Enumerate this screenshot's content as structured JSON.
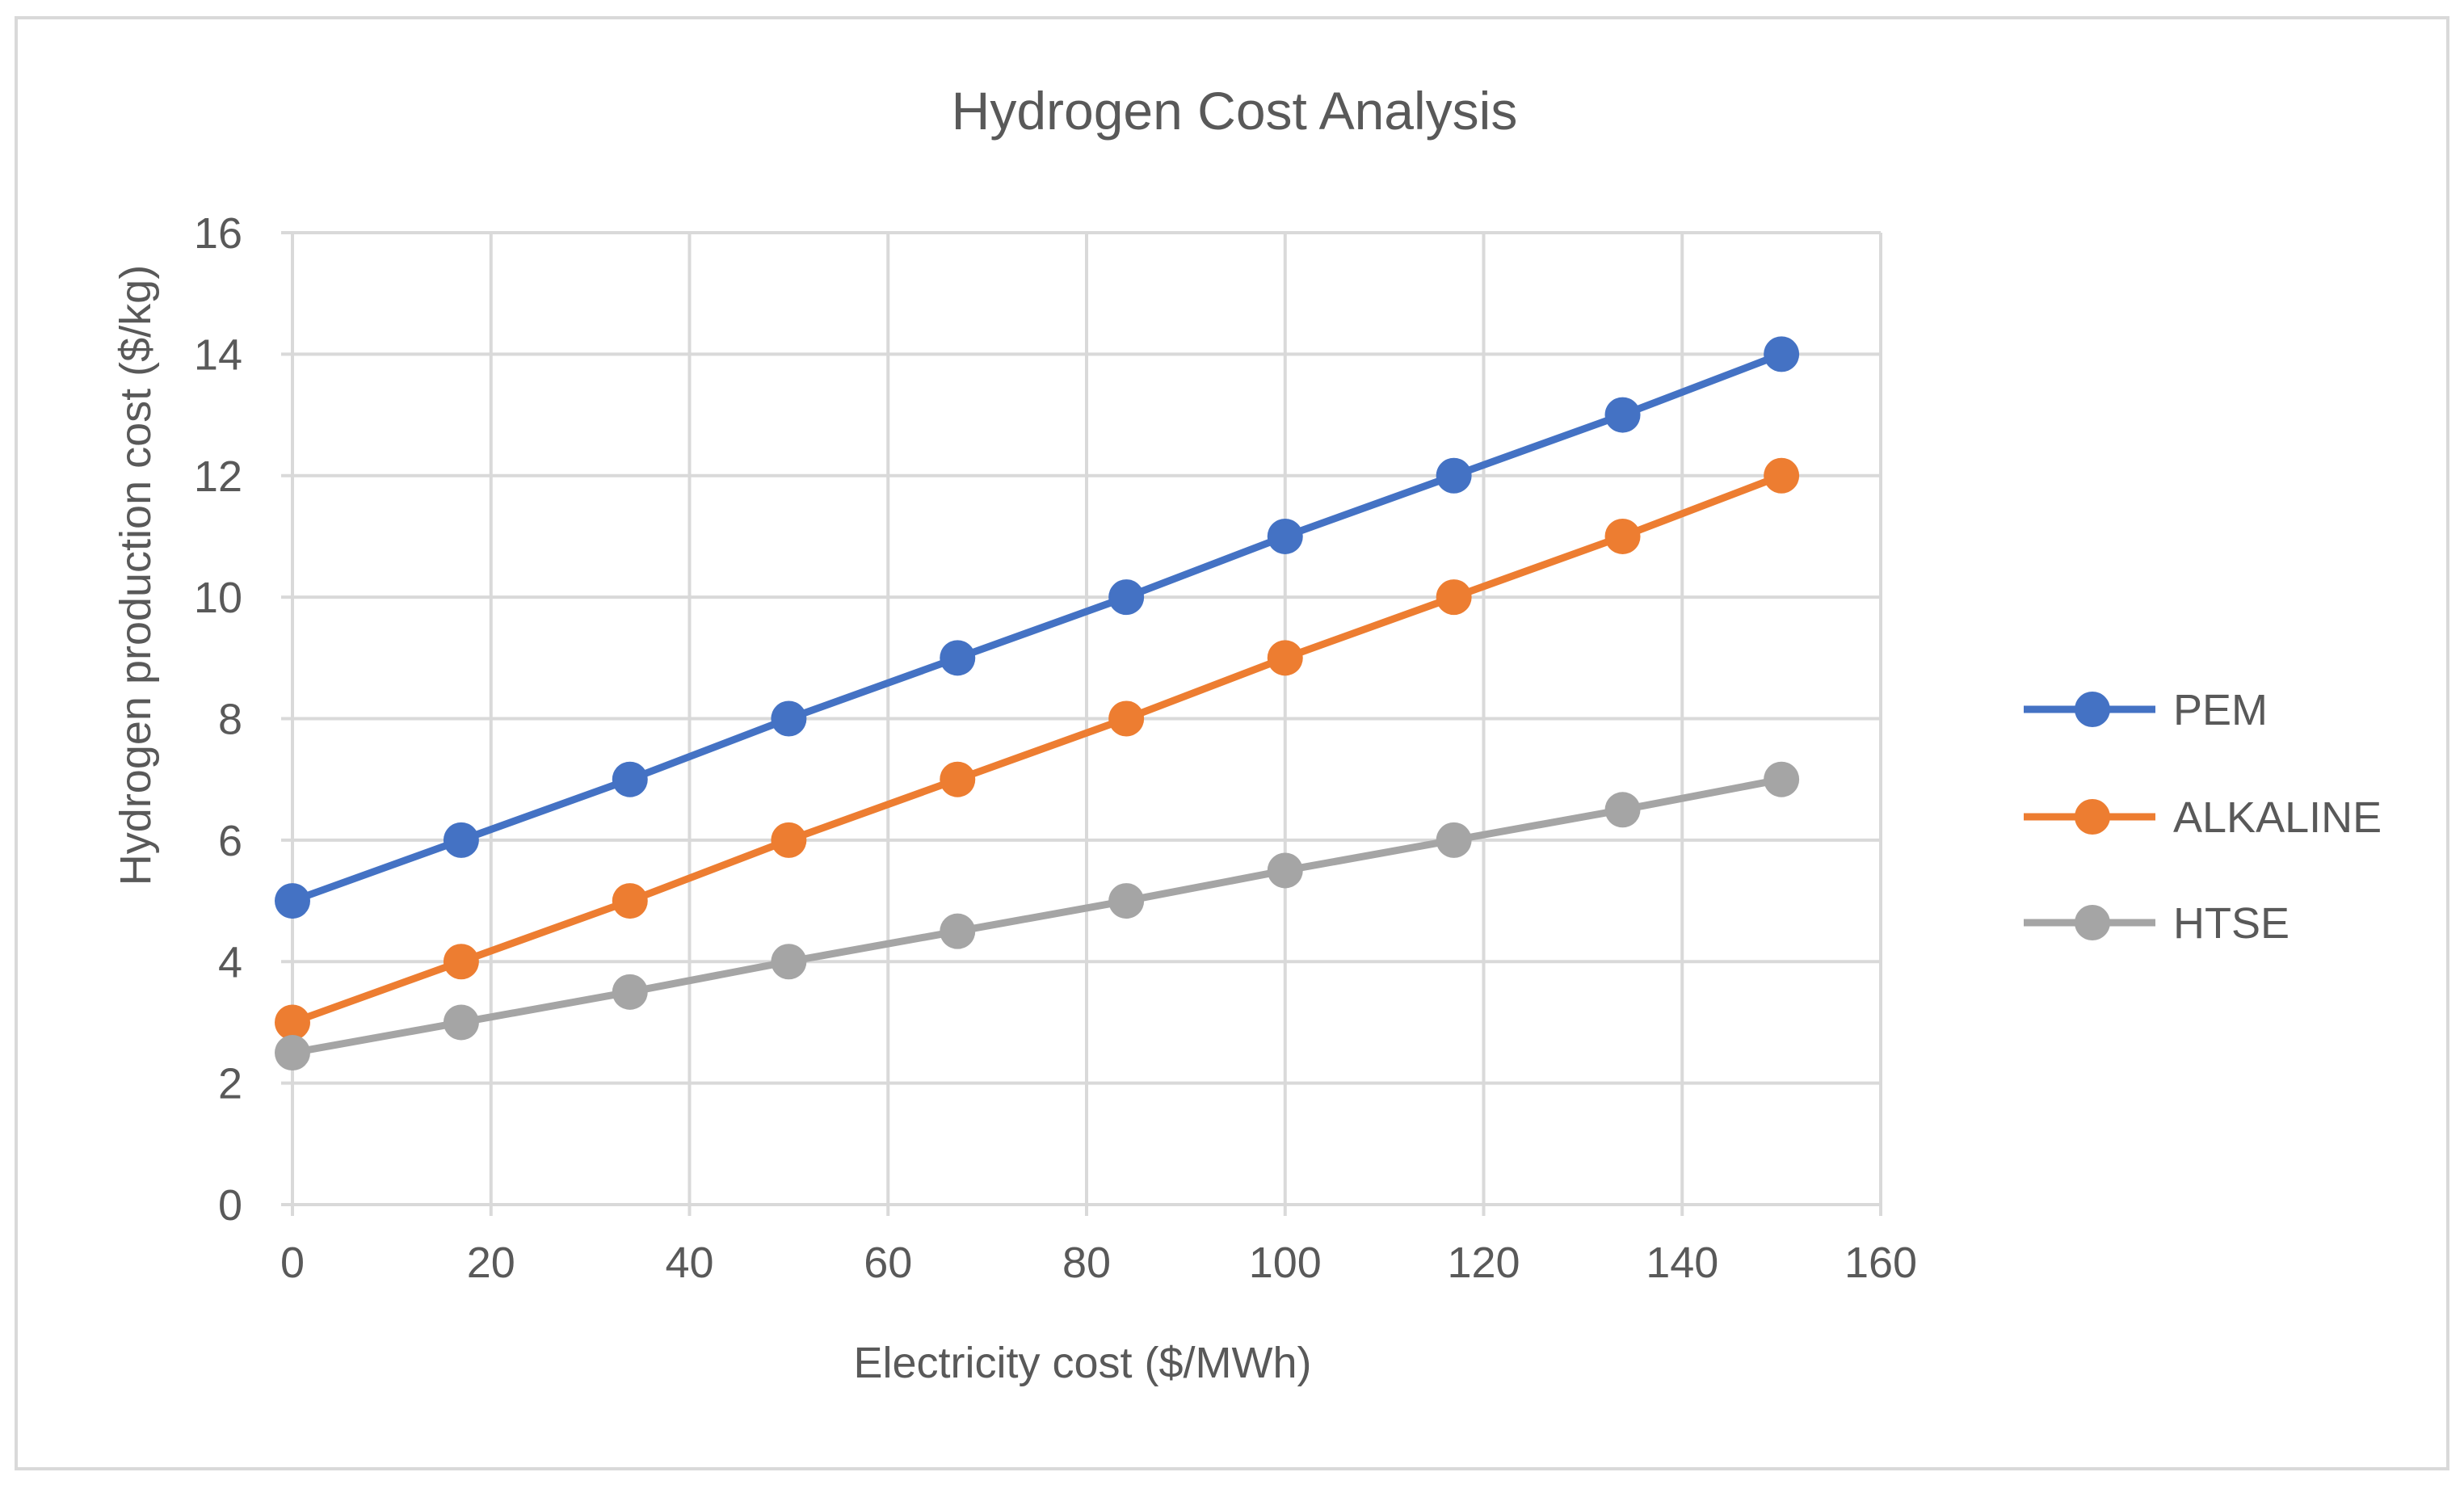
{
  "chart_data": {
    "type": "line",
    "title": "Hydrogen Cost Analysis",
    "xlabel": "Electricity cost  ($/MWh)",
    "ylabel": "Hydrogen production cost ($/kg)",
    "xlim": [
      0,
      160
    ],
    "ylim": [
      0,
      16
    ],
    "x_ticks": [
      "0",
      "20",
      "40",
      "60",
      "80",
      "100",
      "120",
      "140",
      "160"
    ],
    "y_ticks": [
      "0",
      "2",
      "4",
      "6",
      "8",
      "10",
      "12",
      "14",
      "16"
    ],
    "grid": true,
    "legend_position": "right",
    "x": [
      0,
      17,
      34,
      50,
      67,
      84,
      100,
      117,
      134,
      150
    ],
    "series": [
      {
        "name": "PEM",
        "color": "#4472c4",
        "values": [
          5,
          6,
          7,
          8,
          9,
          10,
          11,
          12,
          13,
          14
        ]
      },
      {
        "name": "ALKALINE",
        "color": "#ed7d31",
        "values": [
          3,
          4,
          5,
          6,
          7,
          8,
          9,
          10,
          11,
          12
        ]
      },
      {
        "name": "HTSE",
        "color": "#a5a5a5",
        "values": [
          2.5,
          3,
          3.5,
          4,
          4.5,
          5,
          5.5,
          6,
          6.5,
          7
        ]
      }
    ]
  }
}
